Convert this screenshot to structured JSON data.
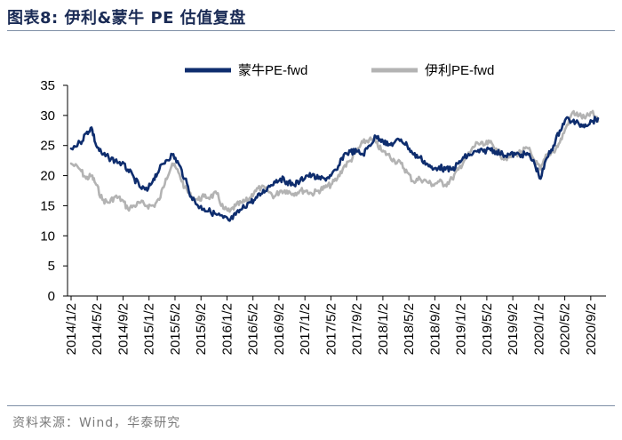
{
  "header": {
    "title": "图表8:  伊利&蒙牛 PE 估值复盘"
  },
  "footer": {
    "source": "资料来源：Wind，华泰研究"
  },
  "chart_data": {
    "type": "line",
    "title": "伊利&蒙牛 PE 估值复盘",
    "xlabel": "",
    "ylabel": "",
    "ylim": [
      0,
      35
    ],
    "yticks": [
      0,
      5,
      10,
      15,
      20,
      25,
      30,
      35
    ],
    "x_tick_labels": [
      "2014/1/2",
      "2014/5/2",
      "2014/9/2",
      "2015/1/2",
      "2015/5/2",
      "2015/9/2",
      "2016/1/2",
      "2016/5/2",
      "2016/9/2",
      "2017/1/2",
      "2017/5/2",
      "2017/9/2",
      "2018/1/2",
      "2018/5/2",
      "2018/9/2",
      "2019/1/2",
      "2019/5/2",
      "2019/9/2",
      "2020/1/2",
      "2020/5/2",
      "2020/9/2"
    ],
    "legend_position": "top",
    "grid": false,
    "series": [
      {
        "name": "蒙牛PE-fwd",
        "color": "#0e2d6e",
        "points": [
          [
            "2014/1/2",
            24.5
          ],
          [
            "2014/2/15",
            25.5
          ],
          [
            "2014/3/15",
            27.0
          ],
          [
            "2014/4/10",
            28.0
          ],
          [
            "2014/5/2",
            25.0
          ],
          [
            "2014/6/1",
            23.5
          ],
          [
            "2014/7/1",
            23.0
          ],
          [
            "2014/8/1",
            22.5
          ],
          [
            "2014/9/2",
            22.0
          ],
          [
            "2014/10/1",
            21.0
          ],
          [
            "2014/11/1",
            19.5
          ],
          [
            "2014/12/1",
            18.0
          ],
          [
            "2015/1/2",
            17.5
          ],
          [
            "2015/2/1",
            19.5
          ],
          [
            "2015/3/1",
            21.0
          ],
          [
            "2015/4/1",
            22.5
          ],
          [
            "2015/5/2",
            23.5
          ],
          [
            "2015/6/1",
            22.0
          ],
          [
            "2015/7/1",
            19.5
          ],
          [
            "2015/8/1",
            16.5
          ],
          [
            "2015/9/2",
            15.0
          ],
          [
            "2015/10/1",
            14.5
          ],
          [
            "2015/11/1",
            14.0
          ],
          [
            "2015/12/1",
            13.5
          ],
          [
            "2016/1/2",
            13.0
          ],
          [
            "2016/2/1",
            12.5
          ],
          [
            "2016/3/1",
            13.5
          ],
          [
            "2016/4/1",
            14.5
          ],
          [
            "2016/5/2",
            15.5
          ],
          [
            "2016/6/1",
            16.0
          ],
          [
            "2016/7/1",
            17.0
          ],
          [
            "2016/8/1",
            18.0
          ],
          [
            "2016/9/2",
            19.0
          ],
          [
            "2016/10/1",
            19.5
          ],
          [
            "2016/11/1",
            19.0
          ],
          [
            "2016/12/1",
            18.5
          ],
          [
            "2017/1/2",
            19.0
          ],
          [
            "2017/2/1",
            20.0
          ],
          [
            "2017/3/1",
            20.0
          ],
          [
            "2017/4/1",
            19.5
          ],
          [
            "2017/5/2",
            19.5
          ],
          [
            "2017/6/1",
            20.0
          ],
          [
            "2017/7/1",
            21.0
          ],
          [
            "2017/8/1",
            23.5
          ],
          [
            "2017/9/2",
            24.0
          ],
          [
            "2017/10/1",
            24.0
          ],
          [
            "2017/11/1",
            23.5
          ],
          [
            "2017/12/1",
            25.0
          ],
          [
            "2018/1/2",
            26.5
          ],
          [
            "2018/2/1",
            26.0
          ],
          [
            "2018/3/1",
            25.0
          ],
          [
            "2018/4/1",
            25.5
          ],
          [
            "2018/5/2",
            26.0
          ],
          [
            "2018/6/1",
            25.0
          ],
          [
            "2018/7/1",
            23.5
          ],
          [
            "2018/8/1",
            23.0
          ],
          [
            "2018/9/2",
            22.0
          ],
          [
            "2018/10/1",
            21.0
          ],
          [
            "2018/11/1",
            21.5
          ],
          [
            "2018/12/1",
            21.0
          ],
          [
            "2019/1/2",
            21.0
          ],
          [
            "2019/2/1",
            22.0
          ],
          [
            "2019/3/1",
            23.0
          ],
          [
            "2019/4/1",
            23.5
          ],
          [
            "2019/5/2",
            24.0
          ],
          [
            "2019/6/1",
            24.0
          ],
          [
            "2019/7/1",
            24.5
          ],
          [
            "2019/8/1",
            24.0
          ],
          [
            "2019/9/2",
            23.5
          ],
          [
            "2019/10/1",
            23.5
          ],
          [
            "2019/11/1",
            23.5
          ],
          [
            "2019/12/1",
            23.5
          ],
          [
            "2020/1/2",
            23.5
          ],
          [
            "2020/2/1",
            22.0
          ],
          [
            "2020/3/1",
            19.5
          ],
          [
            "2020/4/1",
            23.0
          ],
          [
            "2020/5/2",
            25.0
          ],
          [
            "2020/6/1",
            27.5
          ],
          [
            "2020/7/1",
            29.5
          ],
          [
            "2020/8/1",
            29.0
          ],
          [
            "2020/9/2",
            28.5
          ],
          [
            "2020/10/1",
            28.5
          ],
          [
            "2020/11/1",
            29.0
          ],
          [
            "2020/12/1",
            29.5
          ]
        ]
      },
      {
        "name": "伊利PE-fwd",
        "color": "#b3b3b3",
        "points": [
          [
            "2014/1/2",
            22.0
          ],
          [
            "2014/2/15",
            21.0
          ],
          [
            "2014/3/15",
            19.5
          ],
          [
            "2014/4/10",
            20.0
          ],
          [
            "2014/5/2",
            18.5
          ],
          [
            "2014/6/1",
            16.0
          ],
          [
            "2014/7/1",
            15.5
          ],
          [
            "2014/8/1",
            16.5
          ],
          [
            "2014/9/2",
            16.0
          ],
          [
            "2014/10/1",
            14.5
          ],
          [
            "2014/11/1",
            15.0
          ],
          [
            "2014/12/1",
            15.5
          ],
          [
            "2015/1/2",
            15.0
          ],
          [
            "2015/2/1",
            15.0
          ],
          [
            "2015/3/1",
            16.0
          ],
          [
            "2015/4/1",
            19.5
          ],
          [
            "2015/5/2",
            22.0
          ],
          [
            "2015/6/1",
            20.5
          ],
          [
            "2015/7/1",
            18.0
          ],
          [
            "2015/8/1",
            16.5
          ],
          [
            "2015/9/2",
            16.0
          ],
          [
            "2015/10/1",
            16.5
          ],
          [
            "2015/11/1",
            16.5
          ],
          [
            "2015/12/1",
            17.0
          ],
          [
            "2016/1/2",
            14.5
          ],
          [
            "2016/2/1",
            14.0
          ],
          [
            "2016/3/1",
            15.0
          ],
          [
            "2016/4/1",
            15.5
          ],
          [
            "2016/5/2",
            16.0
          ],
          [
            "2016/6/1",
            17.5
          ],
          [
            "2016/7/1",
            18.0
          ],
          [
            "2016/8/1",
            17.5
          ],
          [
            "2016/9/2",
            16.5
          ],
          [
            "2016/10/1",
            17.5
          ],
          [
            "2016/11/1",
            17.5
          ],
          [
            "2016/12/1",
            17.0
          ],
          [
            "2017/1/2",
            17.5
          ],
          [
            "2017/2/1",
            17.5
          ],
          [
            "2017/3/1",
            17.0
          ],
          [
            "2017/4/1",
            17.5
          ],
          [
            "2017/5/2",
            18.0
          ],
          [
            "2017/6/1",
            18.5
          ],
          [
            "2017/7/1",
            19.5
          ],
          [
            "2017/8/1",
            21.5
          ],
          [
            "2017/9/2",
            22.5
          ],
          [
            "2017/10/1",
            24.0
          ],
          [
            "2017/11/1",
            25.5
          ],
          [
            "2017/12/1",
            26.0
          ],
          [
            "2018/1/2",
            25.5
          ],
          [
            "2018/2/1",
            24.0
          ],
          [
            "2018/3/1",
            23.5
          ],
          [
            "2018/4/1",
            22.5
          ],
          [
            "2018/5/2",
            22.0
          ],
          [
            "2018/6/1",
            20.5
          ],
          [
            "2018/7/1",
            19.0
          ],
          [
            "2018/8/1",
            19.5
          ],
          [
            "2018/9/2",
            19.0
          ],
          [
            "2018/10/1",
            18.5
          ],
          [
            "2018/11/1",
            19.0
          ],
          [
            "2018/12/1",
            18.5
          ],
          [
            "2019/1/2",
            19.5
          ],
          [
            "2019/2/1",
            21.0
          ],
          [
            "2019/3/1",
            22.5
          ],
          [
            "2019/4/1",
            24.0
          ],
          [
            "2019/5/2",
            25.5
          ],
          [
            "2019/6/1",
            25.0
          ],
          [
            "2019/7/1",
            25.5
          ],
          [
            "2019/8/1",
            24.5
          ],
          [
            "2019/9/2",
            23.0
          ],
          [
            "2019/10/1",
            23.0
          ],
          [
            "2019/11/1",
            23.5
          ],
          [
            "2019/12/1",
            24.0
          ],
          [
            "2020/1/2",
            24.5
          ],
          [
            "2020/2/1",
            22.5
          ],
          [
            "2020/3/1",
            21.0
          ],
          [
            "2020/4/1",
            23.5
          ],
          [
            "2020/5/2",
            24.0
          ],
          [
            "2020/6/1",
            25.5
          ],
          [
            "2020/7/1",
            28.0
          ],
          [
            "2020/8/1",
            30.5
          ],
          [
            "2020/9/2",
            30.0
          ],
          [
            "2020/10/1",
            29.5
          ],
          [
            "2020/11/1",
            30.5
          ],
          [
            "2020/12/1",
            29.0
          ]
        ]
      }
    ]
  }
}
